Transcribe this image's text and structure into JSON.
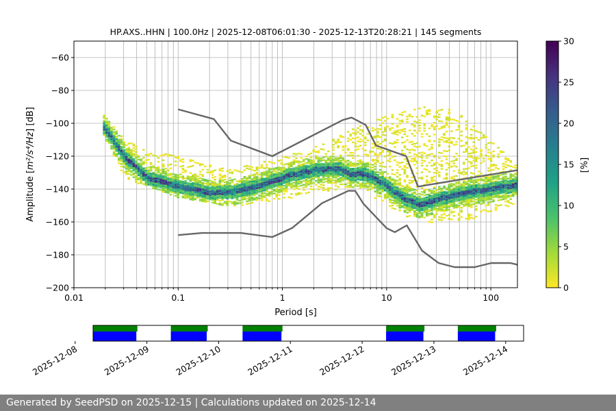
{
  "chart_data": {
    "type": "heatmap",
    "title": "HP.AXS..HHN | 100.0Hz | 2025-12-08T06:01:30 - 2025-12-13T20:28:21 | 145 segments",
    "xlabel": "Period [s]",
    "ylabel_prefix": "Amplitude [",
    "ylabel_suffix": "] [dB]",
    "ylabel_units": "m²/s⁴/Hz",
    "xscale": "log",
    "xlim": [
      0.01,
      180
    ],
    "ylim": [
      -200,
      -50
    ],
    "x_ticks": [
      {
        "value": 0.01,
        "label": "0.01"
      },
      {
        "value": 0.1,
        "label": "0.1"
      },
      {
        "value": 1,
        "label": "1"
      },
      {
        "value": 10,
        "label": "10"
      },
      {
        "value": 100,
        "label": "100"
      }
    ],
    "y_ticks": [
      {
        "value": -60,
        "label": "−60"
      },
      {
        "value": -80,
        "label": "−80"
      },
      {
        "value": -100,
        "label": "−100"
      },
      {
        "value": -120,
        "label": "−120"
      },
      {
        "value": -140,
        "label": "−140"
      },
      {
        "value": -160,
        "label": "−160"
      },
      {
        "value": -180,
        "label": "−180"
      },
      {
        "value": -200,
        "label": "−200"
      }
    ],
    "colorbar": {
      "label": "[%]",
      "min": 0,
      "max": 30,
      "ticks": [
        {
          "value": 0,
          "label": "0"
        },
        {
          "value": 5,
          "label": "5"
        },
        {
          "value": 10,
          "label": "10"
        },
        {
          "value": 15,
          "label": "15"
        },
        {
          "value": 20,
          "label": "20"
        },
        {
          "value": 25,
          "label": "25"
        },
        {
          "value": 30,
          "label": "30"
        }
      ],
      "colors": [
        "#fde725",
        "#a0da39",
        "#4ac16d",
        "#1fa187",
        "#277f8e",
        "#365c8d",
        "#46327e",
        "#440154"
      ]
    },
    "noise_model_color": "#666666",
    "nhnm": [
      [
        0.1,
        -91.5
      ],
      [
        0.22,
        -97.4
      ],
      [
        0.32,
        -110.5
      ],
      [
        0.8,
        -120
      ],
      [
        3.8,
        -98
      ],
      [
        4.6,
        -96.5
      ],
      [
        6.3,
        -101
      ],
      [
        7.9,
        -113.5
      ],
      [
        15.4,
        -120
      ],
      [
        20,
        -138.5
      ],
      [
        180,
        -128.5
      ]
    ],
    "nlnm": [
      [
        0.1,
        -168
      ],
      [
        0.17,
        -166.7
      ],
      [
        0.4,
        -166.7
      ],
      [
        0.8,
        -169.2
      ],
      [
        1.24,
        -163.7
      ],
      [
        2.4,
        -148.6
      ],
      [
        4.3,
        -141.1
      ],
      [
        5.0,
        -141.1
      ],
      [
        6.0,
        -149
      ],
      [
        10,
        -163.8
      ],
      [
        12,
        -166.2
      ],
      [
        15.6,
        -162.1
      ],
      [
        21.9,
        -177.5
      ],
      [
        31.6,
        -185
      ],
      [
        45,
        -187.5
      ],
      [
        70,
        -187.5
      ],
      [
        101,
        -185
      ],
      [
        154,
        -185
      ],
      [
        180,
        -186
      ]
    ],
    "psd_mode": [
      [
        0.019,
        -102
      ],
      [
        0.03,
        -120
      ],
      [
        0.05,
        -133
      ],
      [
        0.1,
        -138
      ],
      [
        0.2,
        -142
      ],
      [
        0.35,
        -141
      ],
      [
        0.7,
        -136
      ],
      [
        1.2,
        -131
      ],
      [
        2,
        -128
      ],
      [
        3.5,
        -127
      ],
      [
        4.5,
        -131
      ],
      [
        5.5,
        -130
      ],
      [
        7,
        -132
      ],
      [
        10,
        -138
      ],
      [
        14,
        -145
      ],
      [
        20,
        -149
      ],
      [
        35,
        -145
      ],
      [
        70,
        -141
      ],
      [
        180,
        -137
      ]
    ],
    "psd_spread_low": [
      [
        0.019,
        -108
      ],
      [
        0.03,
        -133
      ],
      [
        0.1,
        -145
      ],
      [
        0.3,
        -150
      ],
      [
        0.7,
        -148
      ],
      [
        1.5,
        -144
      ],
      [
        3,
        -140
      ],
      [
        5,
        -138
      ],
      [
        10,
        -150
      ],
      [
        20,
        -160
      ],
      [
        50,
        -160
      ],
      [
        180,
        -150
      ]
    ],
    "psd_spread_high": [
      [
        0.019,
        -94
      ],
      [
        0.03,
        -110
      ],
      [
        0.05,
        -116
      ],
      [
        0.1,
        -120
      ],
      [
        0.3,
        -128
      ],
      [
        1,
        -120
      ],
      [
        2.5,
        -112
      ],
      [
        5,
        -102
      ],
      [
        10,
        -95
      ],
      [
        25,
        -89
      ],
      [
        45,
        -92
      ],
      [
        180,
        -125
      ]
    ],
    "availability": {
      "xaxis_start": "2025-12-08T06:00",
      "xaxis_end": "2025-12-14T06:00",
      "date_ticks": [
        "2025-12-08",
        "2025-12-09",
        "2025-12-10",
        "2025-12-11",
        "2025-12-12",
        "2025-12-13",
        "2025-12-14"
      ],
      "segments": [
        {
          "start": "2025-12-08T06:01",
          "end": "2025-12-08T20:28"
        },
        {
          "start": "2025-12-09T08:00",
          "end": "2025-12-09T20:00"
        },
        {
          "start": "2025-12-10T08:00",
          "end": "2025-12-10T21:00"
        },
        {
          "start": "2025-12-12T08:00",
          "end": "2025-12-12T20:28"
        },
        {
          "start": "2025-12-13T08:00",
          "end": "2025-12-13T20:28"
        }
      ],
      "colors": {
        "data": "#0000ff",
        "used": "#008000"
      }
    }
  },
  "footer": {
    "text": "Generated by SeedPSD on 2025-12-15 | Calculations updated on 2025-12-14"
  }
}
